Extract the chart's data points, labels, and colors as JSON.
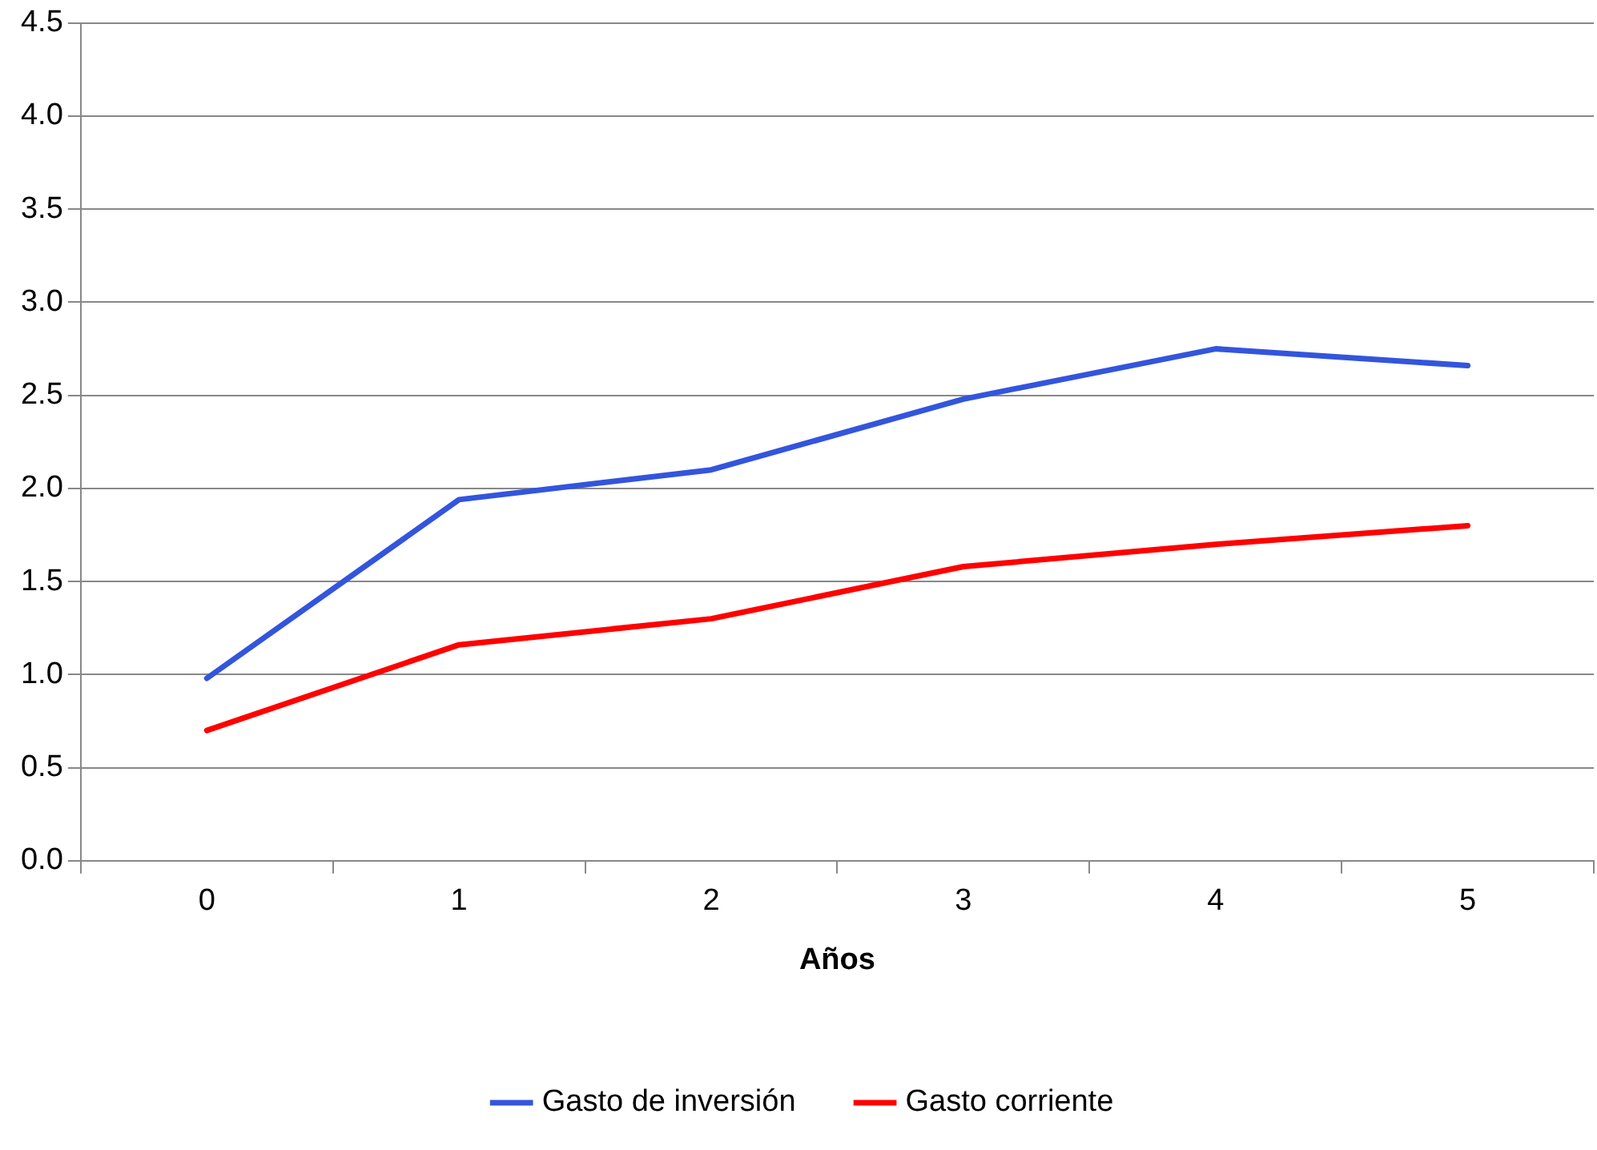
{
  "chart_data": {
    "type": "line",
    "xlabel": "Años",
    "categories": [
      "0",
      "1",
      "2",
      "3",
      "4",
      "5"
    ],
    "series": [
      {
        "name": "Gasto de inversión",
        "color": "#3355dd",
        "values": [
          0.98,
          1.94,
          2.1,
          2.48,
          2.75,
          2.66
        ]
      },
      {
        "name": "Gasto corriente",
        "color": "#ff0000",
        "values": [
          0.7,
          1.16,
          1.3,
          1.58,
          1.7,
          1.8
        ]
      }
    ],
    "ylim": [
      0,
      4.5
    ],
    "yticks": [
      {
        "value": 0,
        "label": "0.0"
      },
      {
        "value": 0.5,
        "label": "0.5"
      },
      {
        "value": 1,
        "label": "1.0"
      },
      {
        "value": 1.5,
        "label": "1.5"
      },
      {
        "value": 2,
        "label": "2.0"
      },
      {
        "value": 2.5,
        "label": "2.5"
      },
      {
        "value": 3,
        "label": "3.0"
      },
      {
        "value": 3.5,
        "label": "3.5"
      },
      {
        "value": 4,
        "label": "4.0"
      },
      {
        "value": 4.5,
        "label": "4.5"
      }
    ],
    "grid": "y",
    "legend": "bottom",
    "marker": "none",
    "line_style": "solid"
  }
}
